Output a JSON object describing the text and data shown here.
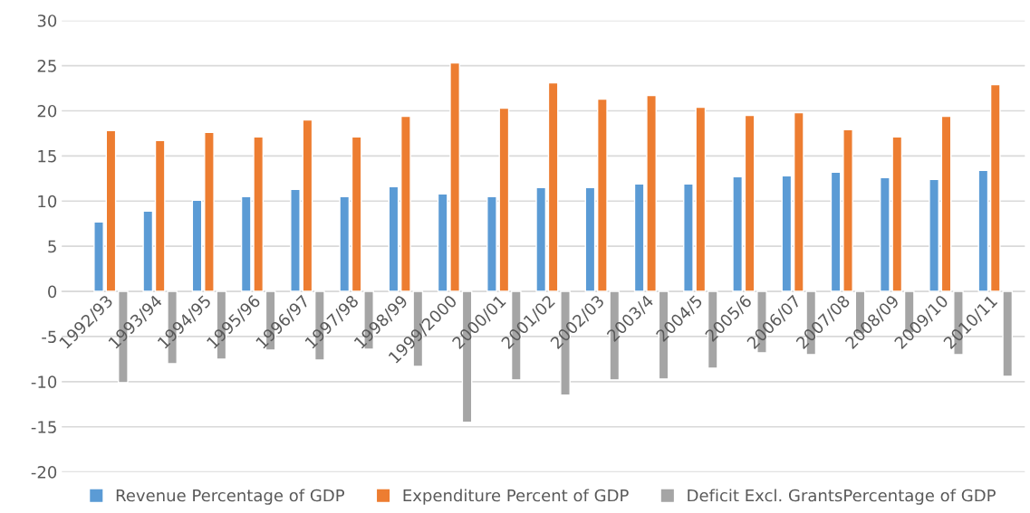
{
  "chart_data": {
    "type": "bar",
    "categories": [
      "1992/93",
      "1993/94",
      "1994/95",
      "1995/96",
      "1996/97",
      "1997/98",
      "1998/99",
      "1999/2000",
      "2000/01",
      "2001/02",
      "2002/03",
      "2003/4",
      "2004/5",
      "2005/6",
      "2006/07",
      "2007/08",
      "2008/09",
      "2009/10",
      "2010/11"
    ],
    "series": [
      {
        "name": "Revenue Percentage of GDP",
        "color": "#5b9bd5",
        "values": [
          7.7,
          8.9,
          10.1,
          10.5,
          11.3,
          10.5,
          11.6,
          10.8,
          10.5,
          11.5,
          11.5,
          11.9,
          11.9,
          12.7,
          12.8,
          13.2,
          12.6,
          12.4,
          13.4
        ]
      },
      {
        "name": "Expenditure Percent of GDP",
        "color": "#ed7d31",
        "values": [
          17.8,
          16.7,
          17.6,
          17.1,
          19.0,
          17.1,
          19.4,
          25.3,
          20.3,
          23.1,
          21.3,
          21.7,
          20.4,
          19.5,
          19.8,
          17.9,
          17.1,
          19.4,
          22.9
        ]
      },
      {
        "name": "Deficit Excl. GrantsPercentage of GDP",
        "color": "#a5a5a5",
        "values": [
          -10.1,
          -8.0,
          -7.5,
          -6.5,
          -7.6,
          -6.4,
          -8.3,
          -14.5,
          -9.8,
          -11.5,
          -9.8,
          -9.7,
          -8.5,
          -6.8,
          -7.0,
          -4.7,
          -4.6,
          -7.0,
          -9.4
        ]
      }
    ],
    "ylim": [
      -20,
      30
    ],
    "yticks": [
      -20,
      -15,
      -10,
      -5,
      0,
      5,
      10,
      15,
      20,
      25,
      30
    ],
    "grid": "y",
    "legend": "bottom"
  }
}
